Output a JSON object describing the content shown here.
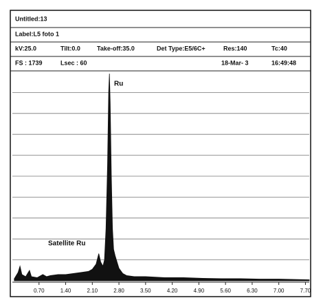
{
  "chart_data": {
    "type": "area",
    "header_rows": [
      [
        "Untitled:13"
      ],
      [
        "Label:L5  foto 1"
      ],
      [
        "kV:25.0",
        "Tilt:0.0",
        "Take-off:35.0",
        "Det Type:E5/6C+",
        "Res:140",
        "Tc:40"
      ],
      [
        "FS : 1739",
        "Lsec : 60",
        "18-Mar- 3",
        "16:49:48"
      ]
    ],
    "annotations": [
      "Ru",
      "Satellite Ru"
    ],
    "x": [
      0.05,
      0.15,
      0.2,
      0.25,
      0.35,
      0.45,
      0.5,
      0.65,
      0.8,
      0.9,
      1.0,
      1.2,
      1.4,
      1.6,
      1.8,
      2.0,
      2.1,
      2.2,
      2.27,
      2.32,
      2.38,
      2.42,
      2.46,
      2.5,
      2.53,
      2.55,
      2.57,
      2.6,
      2.63,
      2.66,
      2.7,
      2.75,
      2.8,
      2.9,
      3.0,
      3.2,
      3.5,
      4.0,
      4.5,
      5.0,
      5.5,
      6.0,
      6.5,
      7.0,
      7.5,
      7.8
    ],
    "values": [
      0.1,
      0.4,
      0.7,
      0.3,
      0.2,
      0.5,
      0.2,
      0.15,
      0.3,
      0.2,
      0.25,
      0.3,
      0.3,
      0.35,
      0.4,
      0.45,
      0.55,
      0.8,
      1.3,
      0.9,
      0.7,
      1.0,
      2.5,
      5.5,
      9.0,
      9.9,
      8.5,
      5.0,
      2.5,
      1.5,
      1.2,
      0.9,
      0.6,
      0.35,
      0.25,
      0.2,
      0.2,
      0.15,
      0.15,
      0.12,
      0.1,
      0.1,
      0.08,
      0.08,
      0.06,
      0.05
    ],
    "color": "#111111",
    "xlim": [
      0,
      7.8
    ],
    "xticks": [
      {
        "value": 0.7,
        "label": "0.70"
      },
      {
        "value": 1.4,
        "label": "1.40"
      },
      {
        "value": 2.1,
        "label": "2.10"
      },
      {
        "value": 2.8,
        "label": "2.80"
      },
      {
        "value": 3.5,
        "label": "3.50"
      },
      {
        "value": 4.2,
        "label": "4.20"
      },
      {
        "value": 4.9,
        "label": "4.90"
      },
      {
        "value": 5.6,
        "label": "5.60"
      },
      {
        "value": 6.3,
        "label": "6.30"
      },
      {
        "value": 7.0,
        "label": "7.00"
      },
      {
        "value": 7.7,
        "label": "7.70"
      }
    ],
    "ylim": [
      0,
      10
    ],
    "yticks": [
      1,
      2,
      3,
      4,
      5,
      6,
      7,
      8,
      9
    ],
    "grid": true
  }
}
